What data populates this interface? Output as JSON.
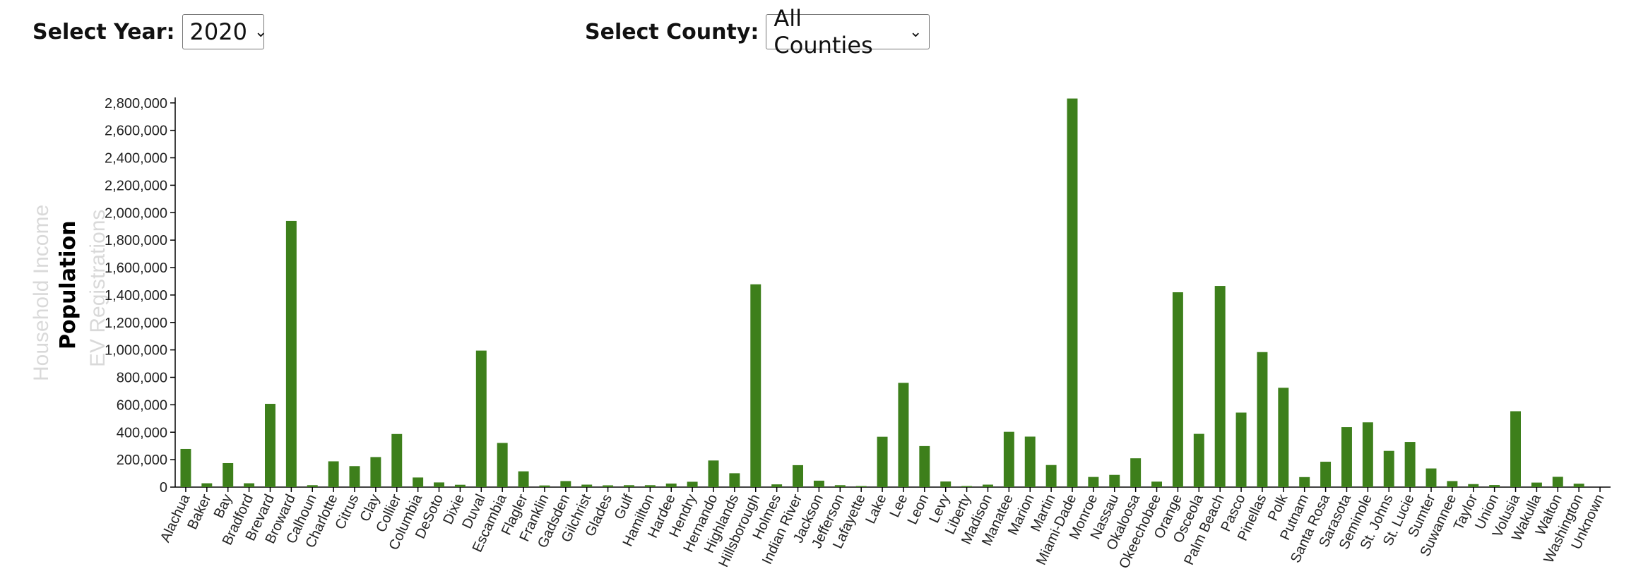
{
  "controls": {
    "year_label": "Select Year:",
    "year_value": "2020",
    "county_label": "Select County:",
    "county_value": "All Counties"
  },
  "y_axis_options": [
    {
      "label": "Household Income",
      "active": false
    },
    {
      "label": "Population",
      "active": true
    },
    {
      "label": "EV Registrations",
      "active": false
    }
  ],
  "colors": {
    "bar": "#3d7f1b",
    "axis": "#000000"
  },
  "chart_data": {
    "type": "bar",
    "ylabel": "Population",
    "ylim": [
      0,
      2840000
    ],
    "yticks": [
      0,
      200000,
      400000,
      600000,
      800000,
      1000000,
      1200000,
      1400000,
      1600000,
      1800000,
      2000000,
      2200000,
      2400000,
      2600000,
      2800000
    ],
    "ytick_labels": [
      "0",
      "200,000",
      "400,000",
      "600,000",
      "800,000",
      "1,000,000",
      "1,200,000",
      "1,400,000",
      "1,600,000",
      "1,800,000",
      "2,000,000",
      "2,200,000",
      "2,400,000",
      "2,600,000",
      "2,800,000"
    ],
    "categories": [
      "Alachua",
      "Baker",
      "Bay",
      "Bradford",
      "Brevard",
      "Broward",
      "Calhoun",
      "Charlotte",
      "Citrus",
      "Clay",
      "Collier",
      "Columbia",
      "DeSoto",
      "Dixie",
      "Duval",
      "Escambia",
      "Flagler",
      "Franklin",
      "Gadsden",
      "Gilchrist",
      "Glades",
      "Gulf",
      "Hamilton",
      "Hardee",
      "Hendry",
      "Hernando",
      "Highlands",
      "Hillsborough",
      "Holmes",
      "Indian River",
      "Jackson",
      "Jefferson",
      "Lafayette",
      "Lake",
      "Lee",
      "Leon",
      "Levy",
      "Liberty",
      "Madison",
      "Manatee",
      "Marion",
      "Martin",
      "Miami-Dade",
      "Monroe",
      "Nassau",
      "Okaloosa",
      "Okeechobee",
      "Orange",
      "Osceola",
      "Palm Beach",
      "Pasco",
      "Pinellas",
      "Polk",
      "Putnam",
      "Santa Rosa",
      "Sarasota",
      "Seminole",
      "St. Johns",
      "St. Lucie",
      "Sumter",
      "Suwannee",
      "Taylor",
      "Union",
      "Volusia",
      "Wakulla",
      "Walton",
      "Washington",
      "Unknown"
    ],
    "values": [
      278000,
      28000,
      175000,
      28000,
      607000,
      1940000,
      14000,
      188000,
      153000,
      219000,
      387000,
      70000,
      34000,
      17000,
      995000,
      322000,
      115000,
      12000,
      44000,
      18000,
      13000,
      14000,
      14000,
      26000,
      39000,
      194000,
      101000,
      1478000,
      20000,
      160000,
      47000,
      14000,
      8000,
      367000,
      760000,
      299000,
      41000,
      8000,
      18000,
      403000,
      368000,
      161000,
      2832000,
      74000,
      89000,
      210000,
      40000,
      1420000,
      388000,
      1466000,
      543000,
      984000,
      724000,
      73000,
      185000,
      437000,
      472000,
      264000,
      329000,
      136000,
      44000,
      22000,
      15000,
      553000,
      33000,
      75000,
      25000,
      0
    ]
  }
}
